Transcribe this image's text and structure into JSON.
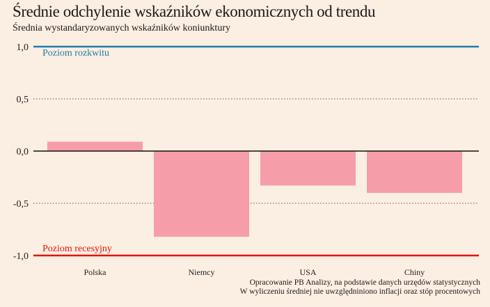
{
  "chart_data": {
    "type": "bar",
    "title": "Średnie odchylenie wskaźników ekonomicznych od trendu",
    "subtitle": "Średnia wystandaryzowanych wskaźników koniunktury",
    "categories": [
      "Polska",
      "Niemcy",
      "USA",
      "Chiny"
    ],
    "values": [
      0.09,
      -0.82,
      -0.33,
      -0.4
    ],
    "ylim": [
      -1.0,
      1.0
    ],
    "yticks": [
      1.0,
      0.5,
      0.0,
      -0.5,
      -1.0
    ],
    "ytick_labels": [
      "1,0",
      "0,5",
      "0,0",
      "-0,5",
      "-1,0"
    ],
    "grid": true,
    "reference_lines": [
      {
        "value": 1.0,
        "label": "Poziom rozkwitu",
        "color": "#1f7ea8"
      },
      {
        "value": -1.0,
        "label": "Poziom recesyjny",
        "color": "#e3120b"
      }
    ],
    "bar_color": "#f59ea9"
  },
  "notes": {
    "source": "Opracowanie PB Analizy, na podstawie danych urzędów statystycznych",
    "footnote": "W wyliczeniu średniej nie uwzględniniono inflacji oraz stóp procentowych"
  }
}
